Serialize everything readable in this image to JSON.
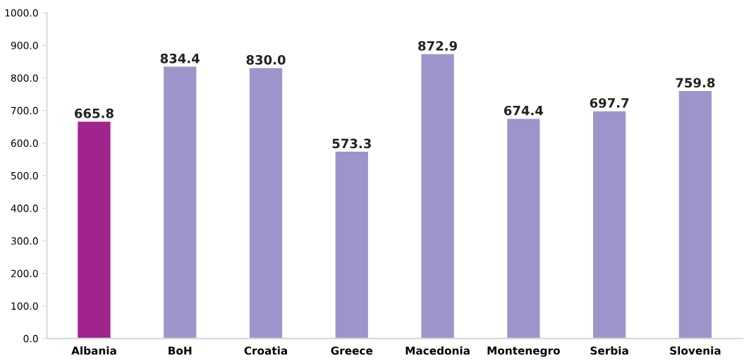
{
  "chart_data": {
    "type": "bar",
    "categories": [
      "Albania",
      "BoH",
      "Croatia",
      "Greece",
      "Macedonia",
      "Montenegro",
      "Serbia",
      "Slovenia"
    ],
    "values": [
      665.8,
      834.4,
      830.0,
      573.3,
      872.9,
      674.4,
      697.7,
      759.8
    ],
    "colors": [
      "#a2228e",
      "#9d95ca",
      "#9d95ca",
      "#9d95ca",
      "#9d95ca",
      "#9d95ca",
      "#9d95ca",
      "#9d95ca"
    ],
    "value_labels": [
      "665.8",
      "834.4",
      "830.0",
      "573.3",
      "872.9",
      "674.4",
      "697.7",
      "759.8"
    ],
    "ylim": [
      0,
      1000
    ],
    "yticks": [
      {
        "value": 0,
        "label": "0.0"
      },
      {
        "value": 100,
        "label": "100.0"
      },
      {
        "value": 200,
        "label": "200.0"
      },
      {
        "value": 300,
        "label": "300.0"
      },
      {
        "value": 400,
        "label": "400.0"
      },
      {
        "value": 500,
        "label": "500.0"
      },
      {
        "value": 600,
        "label": "600.0"
      },
      {
        "value": 700,
        "label": "700.0"
      },
      {
        "value": 800,
        "label": "800.0"
      },
      {
        "value": 900,
        "label": "900.0"
      },
      {
        "value": 1000,
        "label": "1000.0"
      }
    ],
    "grid": false,
    "legend": false
  }
}
